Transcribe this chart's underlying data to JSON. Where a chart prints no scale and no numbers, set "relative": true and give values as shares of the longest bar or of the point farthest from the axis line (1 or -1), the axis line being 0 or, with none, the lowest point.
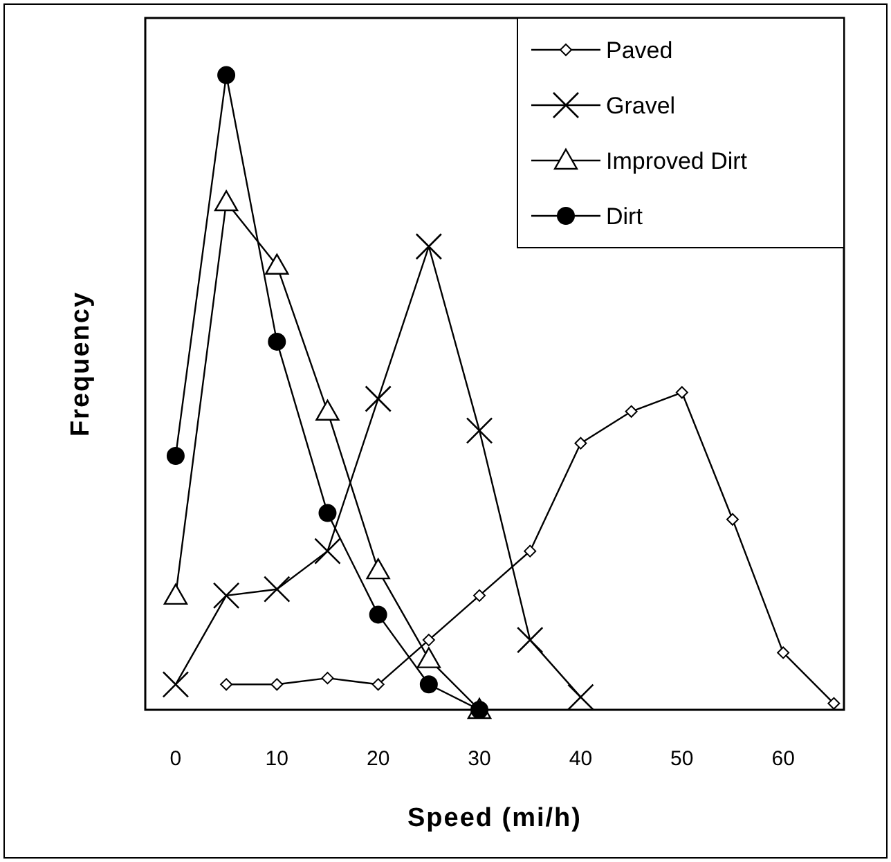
{
  "chart_data": {
    "type": "line",
    "xlabel": "Speed (mi/h)",
    "ylabel": "Frequency",
    "relative": true,
    "xlim": [
      -3,
      66
    ],
    "xticks": [
      0,
      10,
      20,
      30,
      40,
      50,
      60
    ],
    "legend": "top right",
    "series": [
      {
        "name": "Paved",
        "color": "#000000",
        "marker": "diamond",
        "x": [
          5,
          10,
          15,
          20,
          25,
          30,
          35,
          40,
          45,
          50,
          55,
          60,
          65
        ],
        "values": [
          0.04,
          0.04,
          0.05,
          0.04,
          0.11,
          0.18,
          0.25,
          0.42,
          0.47,
          0.5,
          0.3,
          0.09,
          0.01
        ]
      },
      {
        "name": "Gravel",
        "color": "#000000",
        "marker": "cross",
        "x": [
          0,
          5,
          10,
          15,
          20,
          25,
          30,
          35,
          40
        ],
        "values": [
          0.04,
          0.18,
          0.19,
          0.25,
          0.49,
          0.73,
          0.44,
          0.11,
          0.02
        ]
      },
      {
        "name": "Improved Dirt",
        "color": "#000000",
        "marker": "triangle",
        "x": [
          0,
          5,
          10,
          15,
          20,
          25,
          30
        ],
        "values": [
          0.18,
          0.8,
          0.7,
          0.47,
          0.22,
          0.08,
          0
        ]
      },
      {
        "name": "Dirt",
        "color": "#000000",
        "marker": "circle",
        "x": [
          0,
          5,
          10,
          15,
          20,
          25,
          30
        ],
        "values": [
          0.4,
          1,
          0.58,
          0.31,
          0.15,
          0.04,
          0
        ]
      }
    ]
  }
}
